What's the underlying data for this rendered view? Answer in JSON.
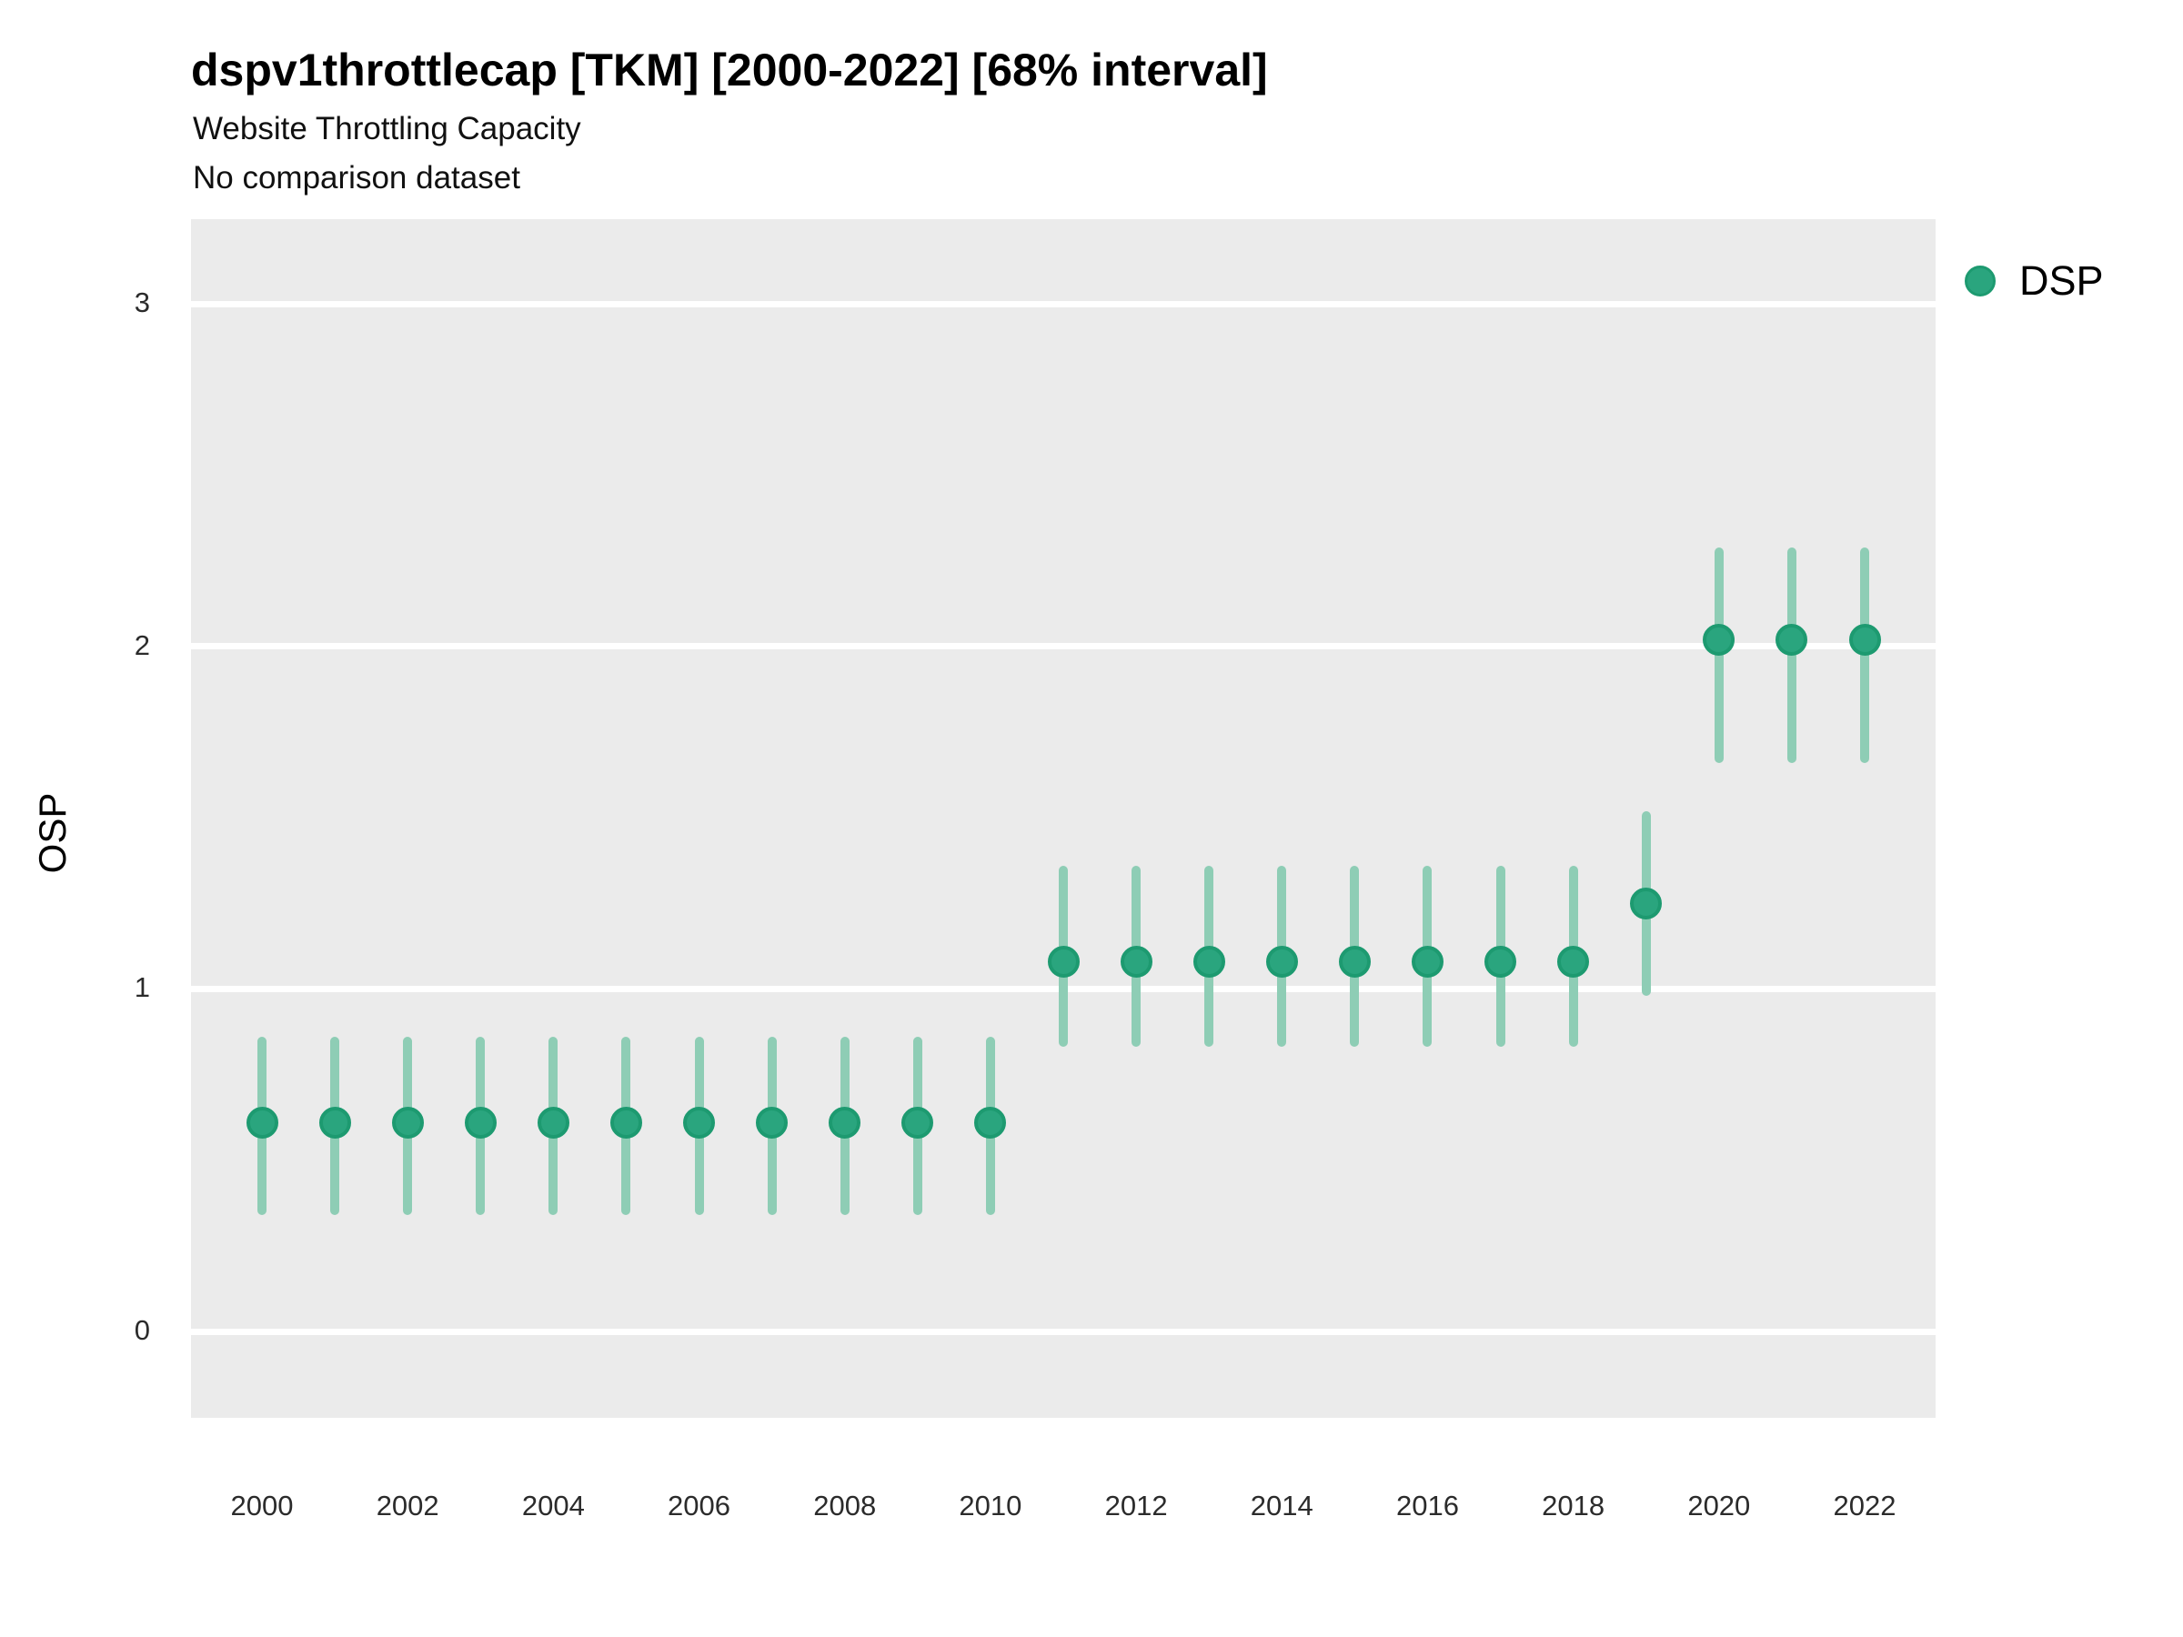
{
  "header": {
    "title": "dspv1throttlecap [TKM] [2000-2022] [68% interval]",
    "subtitle1": "Website Throttling Capacity",
    "subtitle2": "No comparison dataset"
  },
  "legend": {
    "label": "DSP",
    "marker": "circle-icon"
  },
  "axes": {
    "y_title": "OSP",
    "y_ticks": [
      0,
      1,
      2,
      3
    ],
    "x_ticks": [
      2000,
      2002,
      2004,
      2006,
      2008,
      2010,
      2012,
      2014,
      2016,
      2018,
      2020,
      2022
    ]
  },
  "colors": {
    "point_fill": "#2aa57e",
    "point_stroke": "#1d9a70",
    "interval_line": "#8ecdb5",
    "panel_background": "#ebebeb",
    "gridline": "#ffffff",
    "text": "#000000"
  },
  "chart_data": {
    "type": "scatter",
    "subtype": "pointrange",
    "title": "dspv1throttlecap [TKM] [2000-2022] [68% interval]",
    "subtitle": "Website Throttling Capacity",
    "note": "No comparison dataset",
    "interval_level": "68%",
    "xlabel": "",
    "ylabel": "OSP",
    "ylim": [
      -0.25,
      3.25
    ],
    "grid": "horizontal-major",
    "legend_position": "right-top",
    "x": [
      2000,
      2001,
      2002,
      2003,
      2004,
      2005,
      2006,
      2007,
      2008,
      2009,
      2010,
      2011,
      2012,
      2013,
      2014,
      2015,
      2016,
      2017,
      2018,
      2019,
      2020,
      2021,
      2022
    ],
    "series": [
      {
        "name": "DSP",
        "points": [
          {
            "year": 2000,
            "value": 0.61,
            "low": 0.34,
            "high": 0.86
          },
          {
            "year": 2001,
            "value": 0.61,
            "low": 0.34,
            "high": 0.86
          },
          {
            "year": 2002,
            "value": 0.61,
            "low": 0.34,
            "high": 0.86
          },
          {
            "year": 2003,
            "value": 0.61,
            "low": 0.34,
            "high": 0.86
          },
          {
            "year": 2004,
            "value": 0.61,
            "low": 0.34,
            "high": 0.86
          },
          {
            "year": 2005,
            "value": 0.61,
            "low": 0.34,
            "high": 0.86
          },
          {
            "year": 2006,
            "value": 0.61,
            "low": 0.34,
            "high": 0.86
          },
          {
            "year": 2007,
            "value": 0.61,
            "low": 0.34,
            "high": 0.86
          },
          {
            "year": 2008,
            "value": 0.61,
            "low": 0.34,
            "high": 0.86
          },
          {
            "year": 2009,
            "value": 0.61,
            "low": 0.34,
            "high": 0.86
          },
          {
            "year": 2010,
            "value": 0.61,
            "low": 0.34,
            "high": 0.86
          },
          {
            "year": 2011,
            "value": 1.08,
            "low": 0.83,
            "high": 1.36
          },
          {
            "year": 2012,
            "value": 1.08,
            "low": 0.83,
            "high": 1.36
          },
          {
            "year": 2013,
            "value": 1.08,
            "low": 0.83,
            "high": 1.36
          },
          {
            "year": 2014,
            "value": 1.08,
            "low": 0.83,
            "high": 1.36
          },
          {
            "year": 2015,
            "value": 1.08,
            "low": 0.83,
            "high": 1.36
          },
          {
            "year": 2016,
            "value": 1.08,
            "low": 0.83,
            "high": 1.36
          },
          {
            "year": 2017,
            "value": 1.08,
            "low": 0.83,
            "high": 1.36
          },
          {
            "year": 2018,
            "value": 1.08,
            "low": 0.83,
            "high": 1.36
          },
          {
            "year": 2019,
            "value": 1.25,
            "low": 0.98,
            "high": 1.52
          },
          {
            "year": 2020,
            "value": 2.02,
            "low": 1.66,
            "high": 2.29
          },
          {
            "year": 2021,
            "value": 2.02,
            "low": 1.66,
            "high": 2.29
          },
          {
            "year": 2022,
            "value": 2.02,
            "low": 1.66,
            "high": 2.29
          }
        ]
      }
    ]
  }
}
